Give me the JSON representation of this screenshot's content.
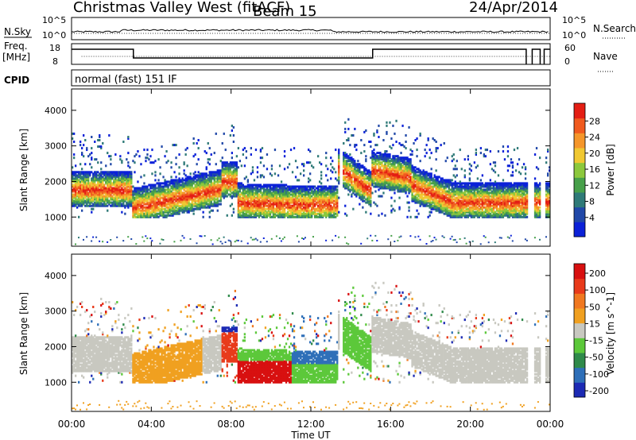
{
  "header": {
    "title": "Christmas Valley West (fitACF)",
    "beam": "Beam 15",
    "date": "24/Apr/2014"
  },
  "summary": {
    "nsky_label": "N.Sky",
    "nsearch_label": "N.Search",
    "noise_ticks_left": [
      "10^5",
      "10^0"
    ],
    "noise_ticks_right": [
      "10^5",
      "10^0"
    ],
    "freq_label": [
      "Freq.",
      "[MHz]"
    ],
    "freq_ticks": [
      "18",
      "8"
    ],
    "nave_label": "Nave",
    "nave_ticks": [
      "60",
      "0"
    ],
    "cpid_label": "CPID",
    "cpid_value": "normal (fast) 151 IF"
  },
  "chart_data": [
    {
      "type": "heatmap",
      "name": "power",
      "ylabel": "Slant Range [km]",
      "yticks": [
        1000,
        2000,
        3000,
        4000
      ],
      "ylim": [
        180,
        4600
      ],
      "xlim": [
        0,
        24
      ],
      "colorbar": {
        "label": "Power [dB]",
        "ticks": [
          "4",
          "8",
          "12",
          "16",
          "20",
          "24",
          "28"
        ],
        "colors": [
          "#0b21d8",
          "#2048a8",
          "#2f7a78",
          "#47a04a",
          "#8cc83c",
          "#f0c832",
          "#f5962a",
          "#f05a1e",
          "#e41e14"
        ]
      }
    },
    {
      "type": "heatmap",
      "name": "velocity",
      "ylabel": "Slant Range [km]",
      "yticks": [
        1000,
        2000,
        3000,
        4000
      ],
      "ylim": [
        180,
        4600
      ],
      "xlim": [
        0,
        24
      ],
      "colorbar": {
        "label": "Velocity [m s^-1]",
        "ticks": [
          "200",
          "100",
          "50",
          "15",
          "-15",
          "-50",
          "-100",
          "-200"
        ],
        "colors": [
          "#1c2ab4",
          "#2e6fb8",
          "#2f8a4a",
          "#5cc83a",
          "#c8c8c0",
          "#f0a020",
          "#f07820",
          "#e83a1a",
          "#d81010"
        ]
      }
    }
  ],
  "xaxis": {
    "label": "Time UT",
    "ticks": [
      "00:00",
      "04:00",
      "08:00",
      "12:00",
      "16:00",
      "20:00",
      "00:00"
    ]
  }
}
